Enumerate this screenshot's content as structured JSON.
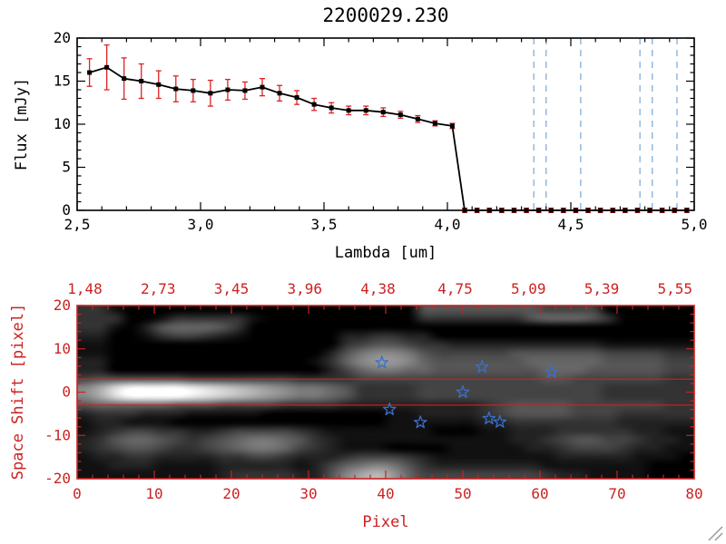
{
  "colors": {
    "background": "#ffffff",
    "axis_black": "#000000",
    "axis_red": "#cc2222",
    "error_bar": "#dd2222",
    "spectrum_line": "#000000",
    "dashed_guide": "#7aa7d6",
    "star": "#3b6fc9",
    "red_overlay_line": "#cc2222"
  },
  "chart_data": [
    {
      "type": "line",
      "title": "2200029.230",
      "xlabel": "Lambda [um]",
      "ylabel": "Flux [mJy]",
      "xlim": [
        2.5,
        5.0
      ],
      "ylim": [
        0,
        20
      ],
      "x_tick_labels": [
        "2,5",
        "3,0",
        "3,5",
        "4,0",
        "4,5",
        "5,0"
      ],
      "x_tick_values": [
        2.5,
        3.0,
        3.5,
        4.0,
        4.5,
        5.0
      ],
      "x_minor_step": 0.1,
      "y_tick_labels": [
        "0",
        "5",
        "10",
        "15",
        "20"
      ],
      "y_tick_values": [
        0,
        5,
        10,
        15,
        20
      ],
      "y_minor_step": 1,
      "series": [
        {
          "name": "spectrum-flux",
          "x": [
            2.55,
            2.62,
            2.69,
            2.76,
            2.83,
            2.9,
            2.97,
            3.04,
            3.11,
            3.18,
            3.25,
            3.32,
            3.39,
            3.46,
            3.53,
            3.6,
            3.67,
            3.74,
            3.81,
            3.88,
            3.95,
            4.02,
            4.07,
            4.12,
            4.17,
            4.22,
            4.27,
            4.32,
            4.37,
            4.42,
            4.47,
            4.52,
            4.57,
            4.62,
            4.67,
            4.72,
            4.77,
            4.82,
            4.87,
            4.92,
            4.97
          ],
          "y": [
            16.0,
            16.6,
            15.3,
            15.0,
            14.6,
            14.1,
            13.9,
            13.6,
            14.0,
            13.9,
            14.3,
            13.6,
            13.1,
            12.3,
            11.9,
            11.6,
            11.6,
            11.4,
            11.1,
            10.6,
            10.1,
            9.8,
            0,
            0,
            0,
            0,
            0,
            0,
            0,
            0,
            0,
            0,
            0,
            0,
            0,
            0,
            0,
            0,
            0,
            0,
            0
          ],
          "yerr": [
            1.6,
            2.6,
            2.4,
            2.0,
            1.6,
            1.5,
            1.3,
            1.5,
            1.2,
            1.0,
            1.0,
            0.9,
            0.8,
            0.7,
            0.6,
            0.5,
            0.5,
            0.5,
            0.4,
            0.4,
            0.3,
            0.3,
            0.25,
            0.25,
            0.25,
            0.25,
            0.25,
            0.25,
            0.25,
            0.25,
            0.25,
            0.25,
            0.25,
            0.25,
            0.25,
            0.25,
            0.25,
            0.25,
            0.25,
            0.25,
            0.25
          ]
        }
      ],
      "dashed_vlines": [
        4.35,
        4.4,
        4.54,
        4.78,
        4.83,
        4.93
      ]
    },
    {
      "type": "heatmap",
      "xlabel": "Pixel",
      "ylabel": "Space Shift [pixel]",
      "xlim": [
        0,
        80
      ],
      "ylim": [
        -20,
        20
      ],
      "x_tick_labels": [
        "0",
        "10",
        "20",
        "30",
        "40",
        "50",
        "60",
        "70",
        "80"
      ],
      "x_tick_values": [
        0,
        10,
        20,
        30,
        40,
        50,
        60,
        70,
        80
      ],
      "x_minor_step": 2,
      "y_tick_labels": [
        "-20",
        "-10",
        "0",
        "10",
        "20"
      ],
      "y_tick_values": [
        -20,
        -10,
        0,
        10,
        20
      ],
      "y_minor_step": 2,
      "top_axis_labels": [
        "1,48",
        "2,73",
        "3,45",
        "3,96",
        "4,38",
        "4,75",
        "5,09",
        "5,39",
        "5,55"
      ],
      "top_axis_positions": [
        1,
        10.5,
        20,
        29.5,
        39,
        49,
        58.5,
        68,
        77.5
      ],
      "red_hlines": [
        3,
        -3
      ],
      "stars": [
        [
          39.5,
          6.8
        ],
        [
          52.5,
          5.8
        ],
        [
          61.5,
          4.7
        ],
        [
          50,
          0
        ],
        [
          40.5,
          -4
        ],
        [
          44.5,
          -7
        ],
        [
          53.4,
          -6.1
        ],
        [
          54.8,
          -6.9
        ]
      ],
      "grid": {
        "cols": 40,
        "rows": 20,
        "values_hex": [
          "3310000000000000000000555555554444000000",
          "3330013333310000000000333333356665300000",
          "3310256665300000000000000000000000000000",
          "2200134432100000022332200000000000000000",
          "1100000000000000034554332222222222111111",
          "1100000000000000257887544444555555444433",
          "2200000000000001368998655555566666555544",
          "2200000000000000246776655555556665555544",
          "4555555444444433334444444444445544444433",
          "8adffffedcba9877653333444444444444333333",
          "8adffffedcba9877653333444444444444333333",
          "5666665554444333322222222234555544444433",
          "2333222111110000000011222234555544433333",
          "1221110000000000000011111122333333322222",
          "1234433223444432111111100011222333332211",
          "2356654345677653211111111111223455443221",
          "2345543345677643211100001111122344432211",
          "1223322223344322234443211111111222221110",
          "1122211112222212467875322222221111111000",
          "111111111233332258ab96444444443221111000"
        ]
      }
    }
  ]
}
